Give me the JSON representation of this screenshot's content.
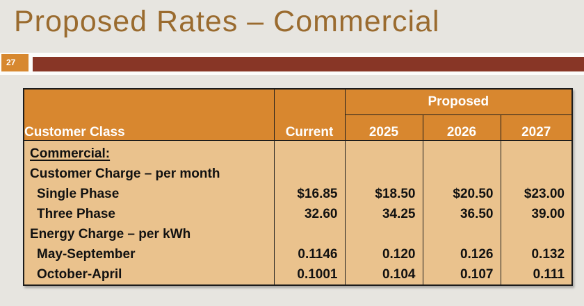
{
  "slide": {
    "title": "Proposed Rates – Commercial",
    "page_number": "27"
  },
  "colors": {
    "background": "#e7e5e0",
    "title_text": "#9a6b2f",
    "accent_bar": "#883626",
    "page_badge_bg": "#d7882f",
    "table_header_bg": "#d8872f",
    "table_body_bg": "#eac28d",
    "table_border": "#1c1c1c",
    "header_text": "#ffffff",
    "body_text": "#111111"
  },
  "table": {
    "header": {
      "customer_class": "Customer Class",
      "current": "Current",
      "proposed": "Proposed",
      "years": [
        "2025",
        "2026",
        "2027"
      ]
    },
    "rows": [
      {
        "label": "Commercial:",
        "values": [
          "",
          "",
          "",
          ""
        ]
      },
      {
        "label": "Customer Charge – per month",
        "values": [
          "",
          "",
          "",
          ""
        ]
      },
      {
        "label": "Single Phase",
        "values": [
          "$16.85",
          "$18.50",
          "$20.50",
          "$23.00"
        ]
      },
      {
        "label": "Three Phase",
        "values": [
          "32.60",
          "34.25",
          "36.50",
          "39.00"
        ]
      },
      {
        "label": "Energy Charge – per kWh",
        "values": [
          "",
          "",
          "",
          ""
        ]
      },
      {
        "label": "May-September",
        "values": [
          "0.1146",
          "0.120",
          "0.126",
          "0.132"
        ]
      },
      {
        "label": "October-April",
        "values": [
          "0.1001",
          "0.104",
          "0.107",
          "0.111"
        ]
      }
    ]
  }
}
